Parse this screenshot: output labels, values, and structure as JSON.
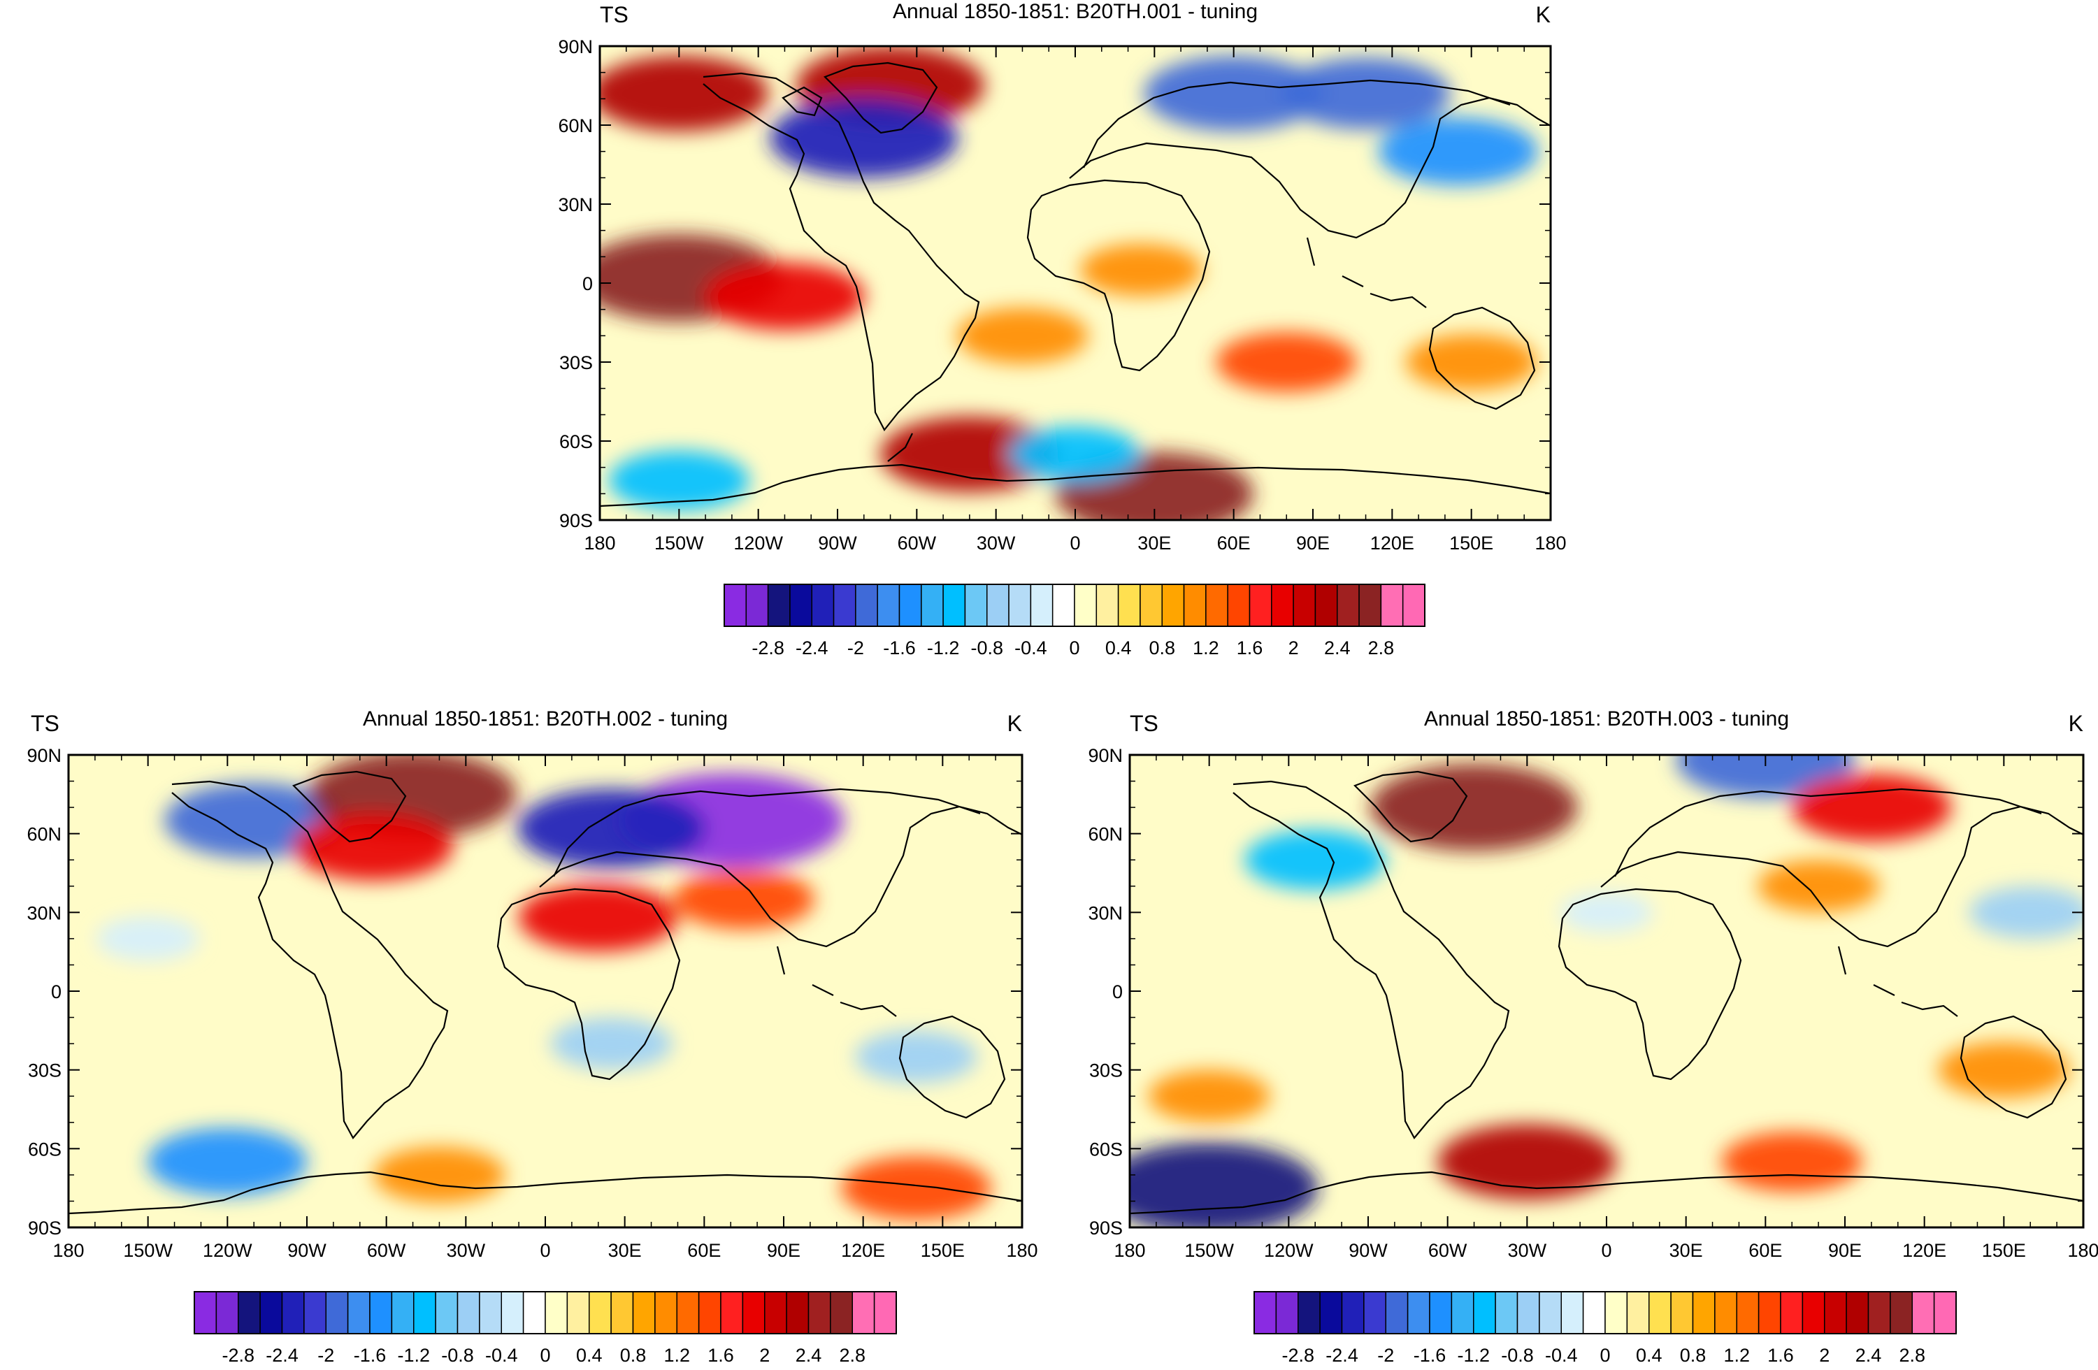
{
  "palette": [
    "#8a2be2",
    "#7b29d6",
    "#14147d",
    "#0a0a9c",
    "#2020b8",
    "#3a3ad0",
    "#3f6ad8",
    "#3d8ef0",
    "#1e90ff",
    "#34b0f5",
    "#00bfff",
    "#6cc8f5",
    "#9ccff5",
    "#b5dcf7",
    "#d5effc",
    "#ffffff",
    "#ffffc8",
    "#fff0a0",
    "#ffe050",
    "#ffc832",
    "#ffa500",
    "#ff8c00",
    "#ff6a00",
    "#ff4500",
    "#ff2020",
    "#e80000",
    "#c80000",
    "#b00000",
    "#a02020",
    "#8b2323",
    "#ff6eb4",
    "#ff69b4"
  ],
  "colorbar_labels": [
    "-2.8",
    "-2.4",
    "-2",
    "-1.6",
    "-1.2",
    "-0.8",
    "-0.4",
    "0",
    "0.4",
    "0.8",
    "1.2",
    "1.6",
    "2",
    "2.4",
    "2.8"
  ],
  "lon_labels": [
    "180",
    "150W",
    "120W",
    "90W",
    "60W",
    "30W",
    "0",
    "30E",
    "60E",
    "90E",
    "120E",
    "150E",
    "180"
  ],
  "lat_labels": [
    "90N",
    "60N",
    "30N",
    "0",
    "30S",
    "60S",
    "90S"
  ],
  "chart_data": [
    {
      "type": "heatmap",
      "variable": "TS",
      "units": "K",
      "title": "Annual 1850-1851: B20TH.001 - tuning",
      "xlim": [
        -180,
        180
      ],
      "ylim": [
        -90,
        90
      ],
      "levels": [
        -2.8,
        -2.4,
        -2,
        -1.6,
        -1.2,
        -0.8,
        -0.4,
        0,
        0.4,
        0.8,
        1.2,
        1.6,
        2,
        2.4,
        2.8
      ],
      "anomalies": [
        {
          "lon": -150,
          "lat": 2,
          "value": 2.6
        },
        {
          "lon": -110,
          "lat": -5,
          "value": 1.6
        },
        {
          "lon": -70,
          "lat": 75,
          "value": 2.2
        },
        {
          "lon": -150,
          "lat": 72,
          "value": 2.0
        },
        {
          "lon": -80,
          "lat": 55,
          "value": -2.2
        },
        {
          "lon": 60,
          "lat": 72,
          "value": -2.0
        },
        {
          "lon": 110,
          "lat": 72,
          "value": -1.8
        },
        {
          "lon": 145,
          "lat": 50,
          "value": -1.6
        },
        {
          "lon": -20,
          "lat": -20,
          "value": 1.0
        },
        {
          "lon": 80,
          "lat": -30,
          "value": 1.2
        },
        {
          "lon": 30,
          "lat": -80,
          "value": 2.4
        },
        {
          "lon": -40,
          "lat": -65,
          "value": 2.0
        },
        {
          "lon": -150,
          "lat": -75,
          "value": -1.2
        },
        {
          "lon": 0,
          "lat": -65,
          "value": -1.0
        },
        {
          "lon": 150,
          "lat": -30,
          "value": 1.0
        },
        {
          "lon": 25,
          "lat": 5,
          "value": 0.8
        }
      ]
    },
    {
      "type": "heatmap",
      "variable": "TS",
      "units": "K",
      "title": "Annual 1850-1851: B20TH.002 - tuning",
      "xlim": [
        -180,
        180
      ],
      "ylim": [
        -90,
        90
      ],
      "levels": [
        -2.8,
        -2.4,
        -2,
        -1.6,
        -1.2,
        -0.8,
        -0.4,
        0,
        0.4,
        0.8,
        1.2,
        1.6,
        2,
        2.4,
        2.8
      ],
      "anomalies": [
        {
          "lon": 70,
          "lat": 65,
          "value": -3.0
        },
        {
          "lon": 25,
          "lat": 62,
          "value": -2.2
        },
        {
          "lon": -110,
          "lat": 65,
          "value": -2.0
        },
        {
          "lon": -50,
          "lat": 75,
          "value": 2.6
        },
        {
          "lon": -65,
          "lat": 55,
          "value": 1.6
        },
        {
          "lon": 20,
          "lat": 28,
          "value": 1.6
        },
        {
          "lon": 75,
          "lat": 35,
          "value": 1.2
        },
        {
          "lon": 140,
          "lat": -75,
          "value": 1.4
        },
        {
          "lon": -40,
          "lat": -70,
          "value": 1.0
        },
        {
          "lon": -120,
          "lat": -65,
          "value": -1.6
        },
        {
          "lon": 25,
          "lat": -20,
          "value": -0.8
        },
        {
          "lon": -150,
          "lat": 20,
          "value": -0.4
        },
        {
          "lon": 140,
          "lat": -25,
          "value": -0.8
        }
      ]
    },
    {
      "type": "heatmap",
      "variable": "TS",
      "units": "K",
      "title": "Annual 1850-1851: B20TH.003 - tuning",
      "xlim": [
        -180,
        180
      ],
      "ylim": [
        -90,
        90
      ],
      "levels": [
        -2.8,
        -2.4,
        -2,
        -1.6,
        -1.2,
        -0.8,
        -0.4,
        0,
        0.4,
        0.8,
        1.2,
        1.6,
        2,
        2.4,
        2.8
      ],
      "anomalies": [
        {
          "lon": -50,
          "lat": 70,
          "value": 2.6
        },
        {
          "lon": 60,
          "lat": 88,
          "value": -2.0
        },
        {
          "lon": 100,
          "lat": 70,
          "value": 1.6
        },
        {
          "lon": -150,
          "lat": -75,
          "value": -2.8
        },
        {
          "lon": -30,
          "lat": -65,
          "value": 2.0
        },
        {
          "lon": 70,
          "lat": -65,
          "value": 1.2
        },
        {
          "lon": 160,
          "lat": 30,
          "value": -0.8
        },
        {
          "lon": -150,
          "lat": -40,
          "value": 0.8
        },
        {
          "lon": 80,
          "lat": 40,
          "value": 0.8
        },
        {
          "lon": -110,
          "lat": 50,
          "value": -1.2
        },
        {
          "lon": 150,
          "lat": -30,
          "value": 1.0
        },
        {
          "lon": 0,
          "lat": 30,
          "value": -0.2
        }
      ]
    }
  ]
}
